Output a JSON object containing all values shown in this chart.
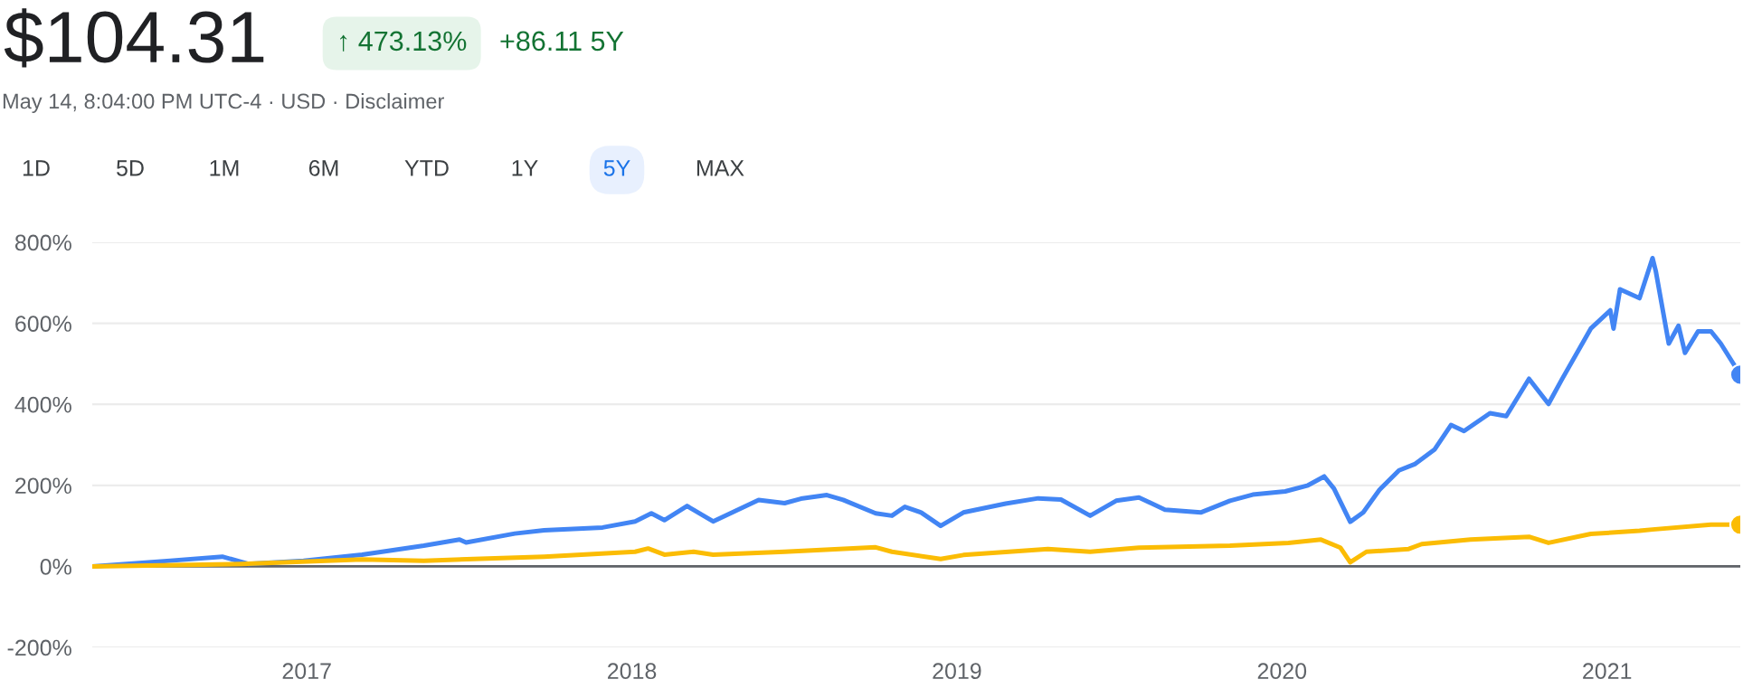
{
  "chart_data": {
    "type": "line",
    "title": "$104.31",
    "annotations": [
      "↑ 473.13%",
      "+86.11 5Y",
      "May 14, 8:04:00 PM UTC-4 · USD · Disclaimer",
      "1D",
      "5D",
      "1M",
      "6M",
      "YTD",
      "1Y",
      "5Y",
      "MAX"
    ],
    "series": [
      {
        "color": "#4285f4",
        "x": [
          2016.34,
          2016.58,
          2016.74,
          2016.82,
          2016.99,
          2017.17,
          2017.36,
          2017.47,
          2017.49,
          2017.64,
          2017.73,
          2017.91,
          2018.01,
          2018.06,
          2018.1,
          2018.17,
          2018.25,
          2018.39,
          2018.47,
          2018.52,
          2018.6,
          2018.65,
          2018.75,
          2018.8,
          2018.84,
          2018.89,
          2018.95,
          2019.02,
          2019.15,
          2019.25,
          2019.32,
          2019.41,
          2019.49,
          2019.56,
          2019.64,
          2019.75,
          2019.84,
          2019.91,
          2020.01,
          2020.08,
          2020.13,
          2020.16,
          2020.21,
          2020.25,
          2020.3,
          2020.36,
          2020.41,
          2020.47,
          2020.52,
          2020.56,
          2020.64,
          2020.69,
          2020.76,
          2020.82,
          2020.86,
          2020.95,
          2021.01,
          2021.02,
          2021.04,
          2021.1,
          2021.14,
          2021.15,
          2021.19,
          2021.22,
          2021.24,
          2021.28,
          2021.32,
          2021.35,
          2021.41
        ],
        "values": [
          0,
          14,
          24,
          6,
          14,
          29,
          51,
          66,
          59,
          81,
          89,
          96,
          111,
          131,
          114,
          149,
          111,
          164,
          156,
          167,
          176,
          164,
          131,
          125,
          147,
          133,
          100,
          133,
          155,
          168,
          165,
          125,
          162,
          170,
          140,
          133,
          162,
          177,
          185,
          200,
          222,
          192,
          110,
          133,
          189,
          237,
          253,
          289,
          349,
          334,
          378,
          371,
          463,
          401,
          460,
          587,
          632,
          587,
          684,
          662,
          761,
          729,
          550,
          594,
          527,
          580,
          580,
          550,
          473.13
        ]
      },
      {
        "color": "#fbbc04",
        "x": [
          2016.34,
          2016.8,
          2017.17,
          2017.36,
          2017.73,
          2018.01,
          2018.05,
          2018.1,
          2018.19,
          2018.25,
          2018.47,
          2018.75,
          2018.8,
          2018.95,
          2019.02,
          2019.28,
          2019.41,
          2019.56,
          2019.84,
          2020.02,
          2020.12,
          2020.18,
          2020.21,
          2020.26,
          2020.39,
          2020.43,
          2020.58,
          2020.76,
          2020.82,
          2020.95,
          2021.1,
          2021.14,
          2021.32,
          2021.41
        ],
        "values": [
          0,
          6,
          17,
          14,
          24,
          36,
          44,
          29,
          36,
          29,
          36,
          47,
          36,
          18,
          28,
          43,
          36,
          46,
          51,
          58,
          66,
          46,
          10,
          36,
          43,
          55,
          66,
          73,
          58,
          80,
          88,
          91,
          103,
          103
        ]
      }
    ],
    "xlim": [
      2016.34,
      2021.41
    ],
    "xticks": [
      2017,
      2018,
      2019,
      2020,
      2021
    ],
    "ylim": [
      -200,
      800
    ],
    "yticks": [
      {
        "value": -200,
        "label": "-200%"
      },
      {
        "value": 0,
        "label": "0%"
      },
      {
        "value": 200,
        "label": "200%"
      },
      {
        "value": 400,
        "label": "400%"
      },
      {
        "value": 600,
        "label": "600%"
      },
      {
        "value": 800,
        "label": "800%"
      }
    ],
    "ref_lines": [
      {
        "axis": "y",
        "value": 0,
        "color": "#5f6368"
      }
    ],
    "grid": "y",
    "line_style": "solid"
  }
}
